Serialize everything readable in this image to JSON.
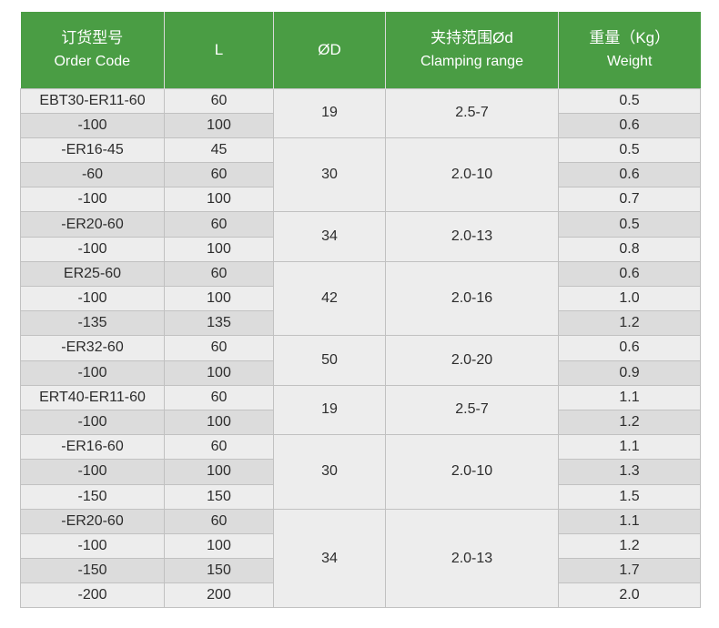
{
  "columns": [
    {
      "zh": "订货型号",
      "en": "Order Code"
    },
    {
      "zh": "L",
      "en": ""
    },
    {
      "zh": "ØD",
      "en": ""
    },
    {
      "zh": "夹持范围Ød",
      "en": "Clamping range"
    },
    {
      "zh": "重量（Kg）",
      "en": "Weight"
    }
  ],
  "groups": [
    {
      "od": "19",
      "clamping_range": "2.5-7",
      "rows": [
        {
          "order_code": "EBT30-ER11-60",
          "l": "60",
          "weight": "0.5"
        },
        {
          "order_code": "-100",
          "l": "100",
          "weight": "0.6"
        }
      ]
    },
    {
      "od": "30",
      "clamping_range": "2.0-10",
      "rows": [
        {
          "order_code": "-ER16-45",
          "l": "45",
          "weight": "0.5"
        },
        {
          "order_code": "-60",
          "l": "60",
          "weight": "0.6"
        },
        {
          "order_code": "-100",
          "l": "100",
          "weight": "0.7"
        }
      ]
    },
    {
      "od": "34",
      "clamping_range": "2.0-13",
      "rows": [
        {
          "order_code": "-ER20-60",
          "l": "60",
          "weight": "0.5"
        },
        {
          "order_code": "-100",
          "l": "100",
          "weight": "0.8"
        }
      ]
    },
    {
      "od": "42",
      "clamping_range": "2.0-16",
      "rows": [
        {
          "order_code": "ER25-60",
          "l": "60",
          "weight": "0.6"
        },
        {
          "order_code": "-100",
          "l": "100",
          "weight": "1.0"
        },
        {
          "order_code": "-135",
          "l": "135",
          "weight": "1.2"
        }
      ]
    },
    {
      "od": "50",
      "clamping_range": "2.0-20",
      "rows": [
        {
          "order_code": "-ER32-60",
          "l": "60",
          "weight": "0.6"
        },
        {
          "order_code": "-100",
          "l": "100",
          "weight": "0.9"
        }
      ]
    },
    {
      "od": "19",
      "clamping_range": "2.5-7",
      "rows": [
        {
          "order_code": "ERT40-ER11-60",
          "l": "60",
          "weight": "1.1"
        },
        {
          "order_code": "-100",
          "l": "100",
          "weight": "1.2"
        }
      ]
    },
    {
      "od": "30",
      "clamping_range": "2.0-10",
      "rows": [
        {
          "order_code": "-ER16-60",
          "l": "60",
          "weight": "1.1"
        },
        {
          "order_code": "-100",
          "l": "100",
          "weight": "1.3"
        },
        {
          "order_code": "-150",
          "l": "150",
          "weight": "1.5"
        }
      ]
    },
    {
      "od": "34",
      "clamping_range": "2.0-13",
      "rows": [
        {
          "order_code": "-ER20-60",
          "l": "60",
          "weight": "1.1"
        },
        {
          "order_code": "-100",
          "l": "100",
          "weight": "1.2"
        },
        {
          "order_code": "-150",
          "l": "150",
          "weight": "1.7"
        },
        {
          "order_code": "-200",
          "l": "200",
          "weight": "2.0"
        }
      ]
    }
  ],
  "colors": {
    "header_bg": "#4a9d44",
    "header_text": "#ffffff",
    "row_light": "#ededed",
    "row_dark": "#dcdcdc",
    "grid_line": "#c1c1c1",
    "body_text": "#2d2d2d"
  }
}
